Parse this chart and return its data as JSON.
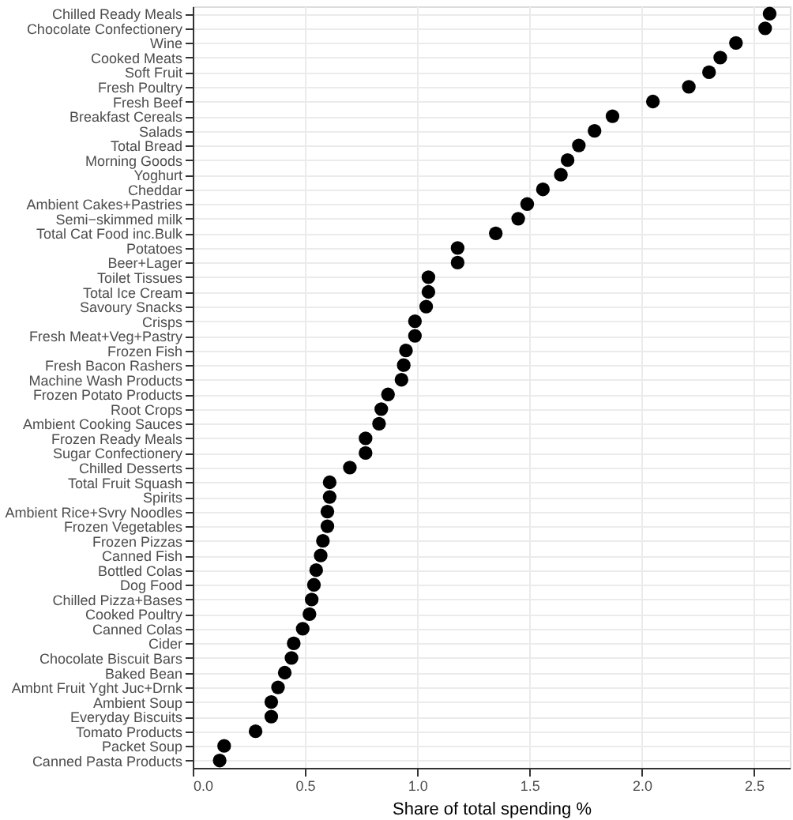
{
  "chart_data": {
    "type": "scatter",
    "xlabel": "Share of total spending %",
    "orientation": "horizontal",
    "grid": true,
    "marker": "circle",
    "categories": [
      "Chilled Ready Meals",
      "Chocolate Confectionery",
      "Wine",
      "Cooked Meats",
      "Soft Fruit",
      "Fresh Poultry",
      "Fresh Beef",
      "Breakfast Cereals",
      "Salads",
      "Total Bread",
      "Morning Goods",
      "Yoghurt",
      "Cheddar",
      "Ambient Cakes+Pastries",
      "Semi−skimmed milk",
      "Total Cat Food inc.Bulk",
      "Potatoes",
      "Beer+Lager",
      "Toilet Tissues",
      "Total Ice Cream",
      "Savoury Snacks",
      "Crisps",
      "Fresh Meat+Veg+Pastry",
      "Frozen Fish",
      "Fresh Bacon Rashers",
      "Machine Wash Products",
      "Frozen Potato Products",
      "Root Crops",
      "Ambient Cooking Sauces",
      "Frozen Ready Meals",
      "Sugar Confectionery",
      "Chilled Desserts",
      "Total Fruit Squash",
      "Spirits",
      "Ambient Rice+Svry Noodles",
      "Frozen Vegetables",
      "Frozen Pizzas",
      "Canned Fish",
      "Bottled Colas",
      "Dog Food",
      "Chilled Pizza+Bases",
      "Cooked Poultry",
      "Canned Colas",
      "Cider",
      "Chocolate Biscuit Bars",
      "Baked Bean",
      "Ambnt Fruit Yght Juc+Drnk",
      "Ambient Soup",
      "Everyday Biscuits",
      "Tomato Products",
      "Packet Soup",
      "Canned Pasta Products"
    ],
    "series": [
      {
        "color": "#000000",
        "values": [
          2.57,
          2.55,
          2.42,
          2.35,
          2.3,
          2.21,
          2.05,
          1.87,
          1.79,
          1.72,
          1.67,
          1.64,
          1.56,
          1.49,
          1.45,
          1.35,
          1.18,
          1.18,
          1.05,
          1.05,
          1.04,
          0.99,
          0.99,
          0.95,
          0.94,
          0.93,
          0.87,
          0.84,
          0.83,
          0.77,
          0.77,
          0.7,
          0.61,
          0.61,
          0.6,
          0.6,
          0.58,
          0.57,
          0.55,
          0.54,
          0.53,
          0.52,
          0.49,
          0.45,
          0.44,
          0.41,
          0.38,
          0.35,
          0.35,
          0.28,
          0.14,
          0.12
        ]
      }
    ],
    "xlim": [
      0,
      2.66
    ],
    "xticks": [
      {
        "value": 0,
        "label": "0.0"
      },
      0.5,
      {
        "value": 1,
        "label": "1.0"
      },
      1.5,
      {
        "value": 2,
        "label": "2.0"
      },
      2.5
    ]
  }
}
